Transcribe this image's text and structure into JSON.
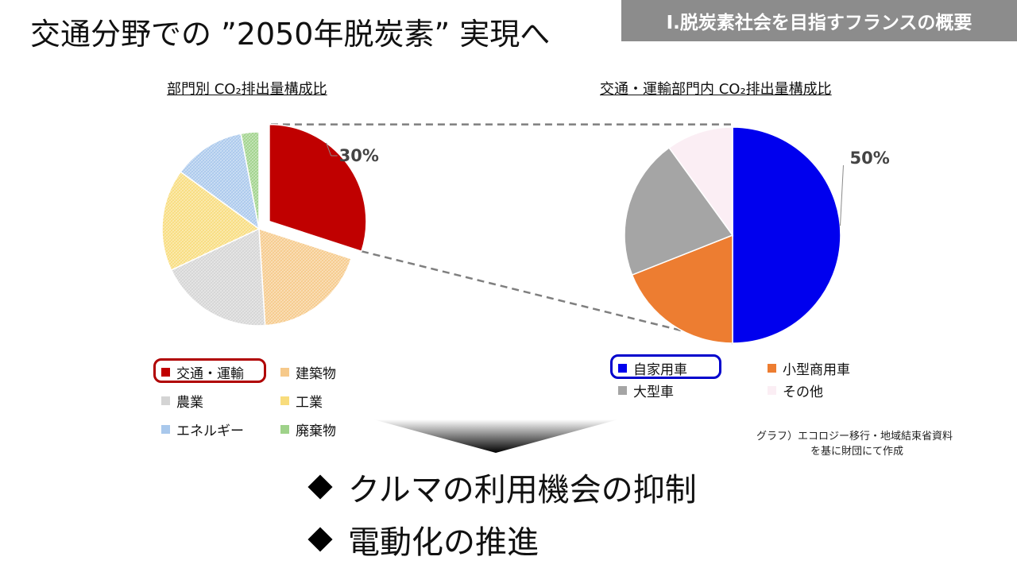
{
  "header": {
    "title": "交通分野での ”2050年脱炭素” 実現へ",
    "section_tag": "Ⅰ.脱炭素社会を目指すフランスの概要"
  },
  "chart_data": [
    {
      "type": "pie",
      "title": "部門別 CO₂排出量構成比",
      "categories": [
        "交通・運輸",
        "建築物",
        "農業",
        "工業",
        "エネルギー",
        "廃棄物"
      ],
      "values": [
        30,
        19,
        19,
        17,
        12,
        3
      ],
      "colors": [
        "#c00000",
        "#f6c98a",
        "#d4d4d4",
        "#f8dc7c",
        "#a9c8ec",
        "#9fd28a"
      ],
      "data_labels": [
        {
          "category": "交通・運輸",
          "text": "30%"
        }
      ],
      "exploded": "交通・運輸",
      "highlighted_legend": "交通・運輸",
      "legend_position": "bottom"
    },
    {
      "type": "pie",
      "title": "交通・運輸部門内 CO₂排出量構成比",
      "categories": [
        "自家用車",
        "小型商用車",
        "大型車",
        "その他"
      ],
      "values": [
        50,
        19,
        21,
        10
      ],
      "colors": [
        "#0000ee",
        "#ed7d31",
        "#a5a5a5",
        "#fbeef4"
      ],
      "data_labels": [
        {
          "category": "自家用車",
          "text": "50%"
        }
      ],
      "highlighted_legend": "自家用車",
      "legend_position": "bottom"
    }
  ],
  "source_note": {
    "line1": "グラフ）エコロジー移行・地域結束省資料",
    "line2": "を基に財団にて作成"
  },
  "bullets": [
    "クルマの利用機会の抑制",
    "電動化の推進"
  ]
}
